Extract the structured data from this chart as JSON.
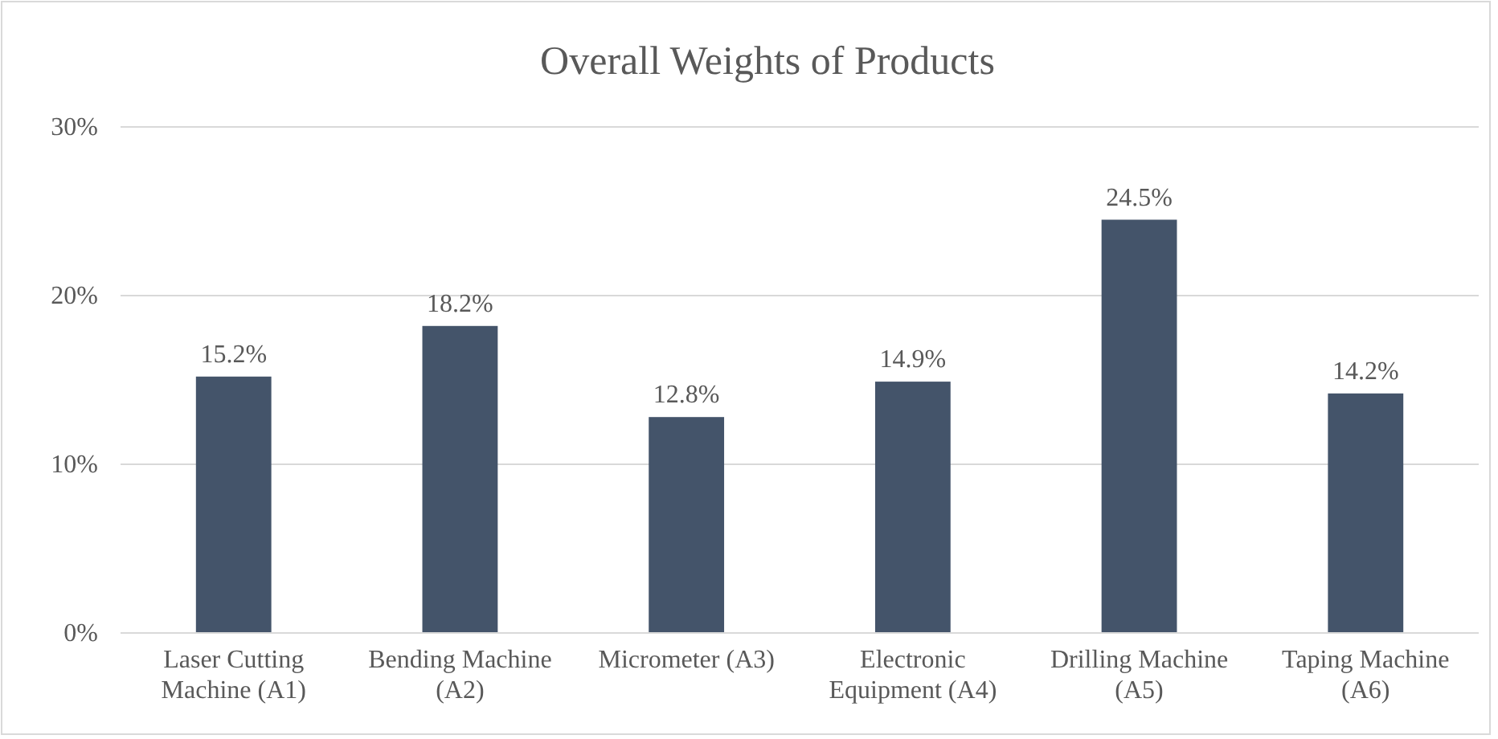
{
  "chart_data": {
    "type": "bar",
    "title": "Overall Weights of Products",
    "categories": [
      "Laser Cutting Machine (A1)",
      "Bending Machine (A2)",
      "Micrometer (A3)",
      "Electronic Equipment (A4)",
      "Drilling Machine (A5)",
      "Taping Machine (A6)"
    ],
    "values": [
      15.2,
      18.2,
      12.8,
      14.9,
      24.5,
      14.2
    ],
    "value_labels": [
      "15.2%",
      "18.2%",
      "12.8%",
      "14.9%",
      "24.5%",
      "14.2%"
    ],
    "color": "#44546a",
    "ylim": [
      0,
      30
    ],
    "yticks": [
      {
        "value": 0,
        "label": "0%"
      },
      {
        "value": 10,
        "label": "10%"
      },
      {
        "value": 20,
        "label": "20%"
      },
      {
        "value": 30,
        "label": "30%"
      }
    ],
    "grid": "y"
  }
}
